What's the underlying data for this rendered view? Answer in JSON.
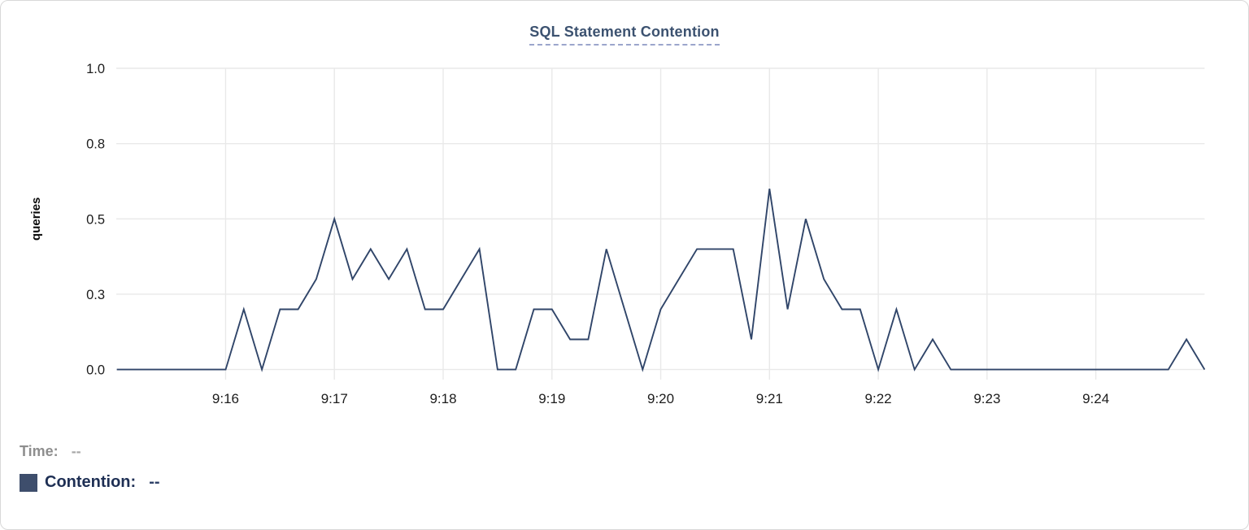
{
  "header": {
    "title": "SQL Statement Contention",
    "title_color": "#3c5270",
    "underline_color": "#9ba5cc"
  },
  "legend": {
    "time_label": "Time:",
    "time_value": "--",
    "series_label": "Contention:",
    "series_value": "--",
    "swatch_color": "#3e4e6c"
  },
  "chart_data": {
    "type": "line",
    "title": "SQL Statement Contention",
    "xlabel": "",
    "ylabel": "queries",
    "ylim": [
      0,
      1.0
    ],
    "grid": true,
    "legend_position": "bottom-left",
    "line_color": "#304569",
    "x_range": [
      "9:15:00",
      "9:25:00"
    ],
    "x_tick_labels": [
      "9:16",
      "9:17",
      "9:18",
      "9:19",
      "9:20",
      "9:21",
      "9:22",
      "9:23",
      "9:24"
    ],
    "y_ticks": [
      {
        "label": "1.0",
        "value": 1.0
      },
      {
        "label": "0.8",
        "value": 0.75
      },
      {
        "label": "0.5",
        "value": 0.5
      },
      {
        "label": "0.3",
        "value": 0.25
      },
      {
        "label": "0.0",
        "value": 0.0
      }
    ],
    "series": [
      {
        "name": "Contention",
        "x": [
          "9:15:00",
          "9:15:10",
          "9:15:20",
          "9:15:30",
          "9:15:40",
          "9:15:50",
          "9:16:00",
          "9:16:10",
          "9:16:20",
          "9:16:30",
          "9:16:40",
          "9:16:50",
          "9:17:00",
          "9:17:10",
          "9:17:20",
          "9:17:30",
          "9:17:40",
          "9:17:50",
          "9:18:00",
          "9:18:10",
          "9:18:20",
          "9:18:30",
          "9:18:40",
          "9:18:50",
          "9:19:00",
          "9:19:10",
          "9:19:20",
          "9:19:30",
          "9:19:40",
          "9:19:50",
          "9:20:00",
          "9:20:10",
          "9:20:20",
          "9:20:30",
          "9:20:40",
          "9:20:50",
          "9:21:00",
          "9:21:10",
          "9:21:20",
          "9:21:30",
          "9:21:40",
          "9:21:50",
          "9:22:00",
          "9:22:10",
          "9:22:20",
          "9:22:30",
          "9:22:40",
          "9:22:50",
          "9:23:00",
          "9:23:10",
          "9:23:20",
          "9:23:30",
          "9:23:40",
          "9:23:50",
          "9:24:00",
          "9:24:10",
          "9:24:20",
          "9:24:30",
          "9:24:40",
          "9:24:50",
          "9:25:00"
        ],
        "values": [
          0,
          0,
          0,
          0,
          0,
          0,
          0,
          0.2,
          0,
          0.2,
          0.2,
          0.3,
          0.5,
          0.3,
          0.4,
          0.3,
          0.4,
          0.2,
          0.2,
          0.3,
          0.4,
          0,
          0,
          0.2,
          0.2,
          0.1,
          0.1,
          0.4,
          0.2,
          0,
          0.2,
          0.3,
          0.4,
          0.4,
          0.4,
          0.1,
          0.6,
          0.2,
          0.5,
          0.3,
          0.2,
          0.2,
          0,
          0.2,
          0,
          0.1,
          0,
          0,
          0,
          0,
          0,
          0,
          0,
          0,
          0,
          0,
          0,
          0,
          0,
          0.1,
          0
        ]
      }
    ]
  }
}
